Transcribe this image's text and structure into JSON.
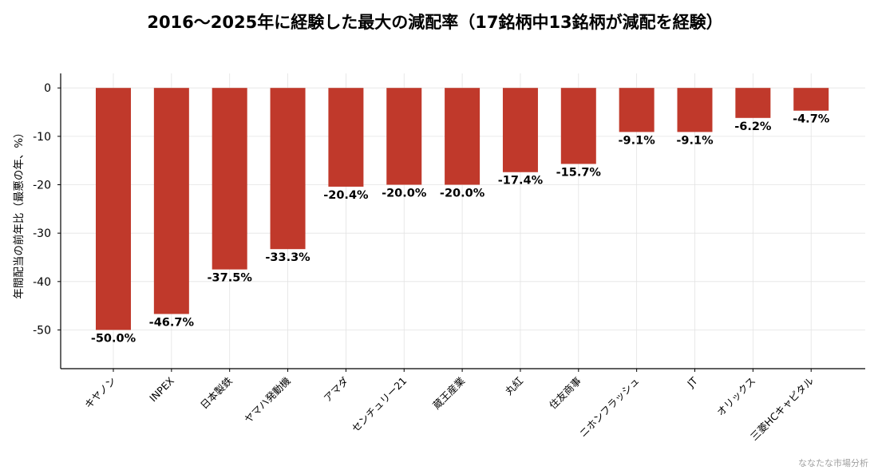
{
  "title": "2016〜2025年に経験した最大の減配率（17銘柄中13銘柄が減配を経験）",
  "watermark": "ななたな市場分析",
  "colors": {
    "bar": "#c0392b",
    "grid": "#e3e3e3",
    "axis": "#000000"
  },
  "chart_data": {
    "type": "bar",
    "title": "2016〜2025年に経験した最大の減配率（17銘柄中13銘柄が減配を経験）",
    "xlabel": "",
    "ylabel": "年間配当の前年比（最悪の年、%）",
    "ylim": [
      -58,
      3
    ],
    "yticks": [
      0,
      -10,
      -20,
      -30,
      -40,
      -50
    ],
    "grid": true,
    "categories": [
      "キヤノン",
      "INPEX",
      "日本製鉄",
      "ヤマハ発動機",
      "アマダ",
      "センチュリー21",
      "蔵王産業",
      "丸紅",
      "住友商事",
      "ニホンフラッシュ",
      "JT",
      "オリックス",
      "三菱HCキャピタル"
    ],
    "values": [
      -50.0,
      -46.7,
      -37.5,
      -33.3,
      -20.4,
      -20.0,
      -20.0,
      -17.4,
      -15.7,
      -9.1,
      -9.1,
      -6.2,
      -4.7
    ],
    "data_labels": [
      "-50.0%",
      "-46.7%",
      "-37.5%",
      "-33.3%",
      "-20.4%",
      "-20.0%",
      "-20.0%",
      "-17.4%",
      "-15.7%",
      "-9.1%",
      "-9.1%",
      "-6.2%",
      "-4.7%"
    ]
  }
}
